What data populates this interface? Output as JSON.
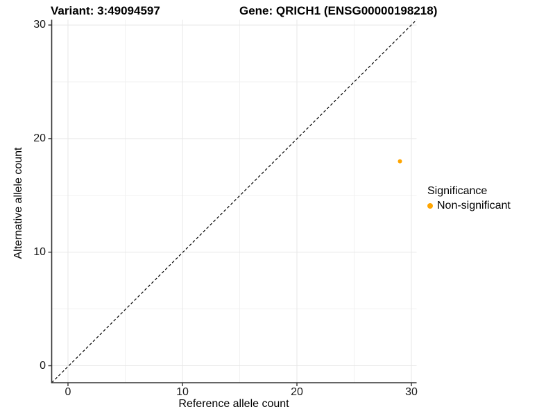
{
  "header": {
    "title_variant": "Variant: 3:49094597",
    "title_gene": "Gene: QRICH1 (ENSG00000198218)"
  },
  "legend": {
    "title": "Significance",
    "entries": [
      {
        "label": "Non-significant",
        "color": "#FFA500"
      }
    ]
  },
  "colors": {
    "point": "#FFA500",
    "axis_line": "#333333",
    "grid_major": "#e7e7e7",
    "grid_minor": "#f1f1f1",
    "reference_line": "#000000",
    "text": "#000000"
  },
  "chart_data": {
    "type": "scatter",
    "title": "Variant: 3:49094597 | Gene: QRICH1 (ENSG00000198218)",
    "xlabel": "Reference allele count",
    "ylabel": "Alternative allele count",
    "xlim": [
      0,
      30
    ],
    "ylim": [
      0,
      30
    ],
    "x_ticks": [
      0,
      10,
      20,
      30
    ],
    "y_ticks": [
      0,
      10,
      20,
      30
    ],
    "x_minor_ticks": [
      5,
      15,
      25
    ],
    "y_minor_ticks": [
      5,
      15,
      25
    ],
    "grid": true,
    "legend_position": "right",
    "series": [
      {
        "name": "Non-significant",
        "color": "#FFA500",
        "points": [
          {
            "x": 29,
            "y": 18
          }
        ]
      }
    ],
    "reference_line": {
      "type": "identity",
      "equation": "y = x",
      "style": "dashed",
      "color": "#000000"
    }
  }
}
